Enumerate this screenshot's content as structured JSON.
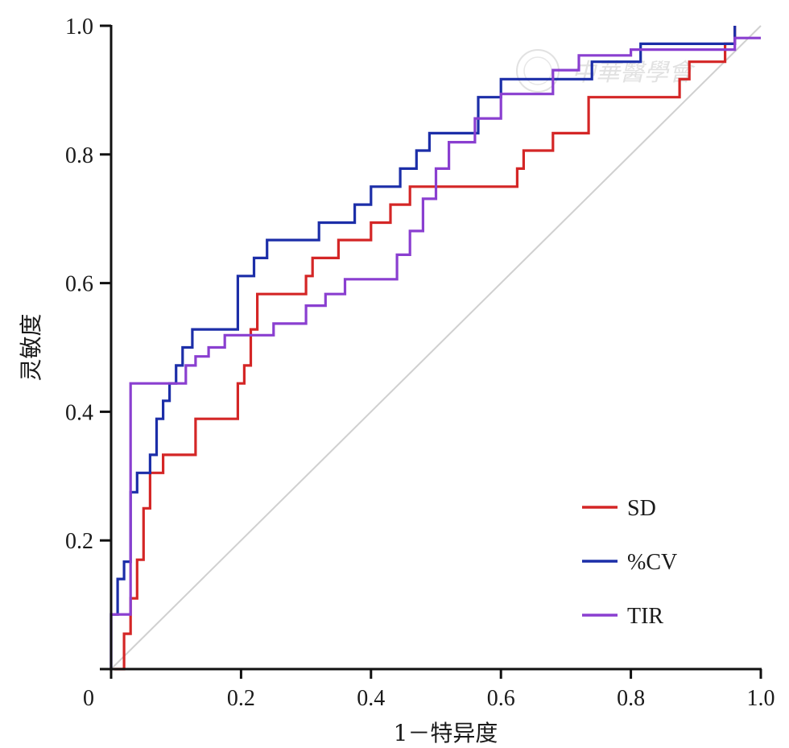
{
  "chart_data": {
    "type": "line",
    "xlabel": "1－特异度",
    "ylabel": "灵敏度",
    "xlim": [
      0,
      1
    ],
    "ylim": [
      0,
      1
    ],
    "xticks": [
      {
        "value": 0,
        "label": "0"
      },
      {
        "value": 0.2,
        "label": "0.2"
      },
      {
        "value": 0.4,
        "label": "0.4"
      },
      {
        "value": 0.6,
        "label": "0.6"
      },
      {
        "value": 0.8,
        "label": "0.8"
      },
      {
        "value": 1,
        "label": "1.0"
      }
    ],
    "yticks": [
      {
        "value": 0.2,
        "label": "0.2"
      },
      {
        "value": 0.4,
        "label": "0.4"
      },
      {
        "value": 0.6,
        "label": "0.6"
      },
      {
        "value": 0.8,
        "label": "0.8"
      },
      {
        "value": 1,
        "label": "1.0"
      }
    ],
    "grid": false,
    "legend_position": "bottom-right",
    "reference_line": {
      "x": [
        0,
        1
      ],
      "y": [
        0,
        1
      ],
      "color": "#d0d0d0"
    },
    "series": [
      {
        "name": "SD",
        "color": "#d42626",
        "points": [
          [
            0.005,
            0
          ],
          [
            0.02,
            0
          ],
          [
            0.02,
            0.055
          ],
          [
            0.03,
            0.055
          ],
          [
            0.03,
            0.11
          ],
          [
            0.04,
            0.11
          ],
          [
            0.04,
            0.17
          ],
          [
            0.05,
            0.17
          ],
          [
            0.05,
            0.25
          ],
          [
            0.06,
            0.25
          ],
          [
            0.06,
            0.305
          ],
          [
            0.08,
            0.305
          ],
          [
            0.08,
            0.333
          ],
          [
            0.13,
            0.333
          ],
          [
            0.13,
            0.389
          ],
          [
            0.195,
            0.389
          ],
          [
            0.195,
            0.444
          ],
          [
            0.205,
            0.444
          ],
          [
            0.205,
            0.472
          ],
          [
            0.215,
            0.472
          ],
          [
            0.215,
            0.528
          ],
          [
            0.225,
            0.528
          ],
          [
            0.225,
            0.583
          ],
          [
            0.3,
            0.583
          ],
          [
            0.3,
            0.611
          ],
          [
            0.31,
            0.611
          ],
          [
            0.31,
            0.639
          ],
          [
            0.35,
            0.639
          ],
          [
            0.35,
            0.667
          ],
          [
            0.4,
            0.667
          ],
          [
            0.4,
            0.694
          ],
          [
            0.43,
            0.694
          ],
          [
            0.43,
            0.722
          ],
          [
            0.46,
            0.722
          ],
          [
            0.46,
            0.75
          ],
          [
            0.625,
            0.75
          ],
          [
            0.625,
            0.778
          ],
          [
            0.635,
            0.778
          ],
          [
            0.635,
            0.806
          ],
          [
            0.68,
            0.806
          ],
          [
            0.68,
            0.833
          ],
          [
            0.735,
            0.833
          ],
          [
            0.735,
            0.889
          ],
          [
            0.875,
            0.889
          ],
          [
            0.875,
            0.917
          ],
          [
            0.89,
            0.917
          ],
          [
            0.89,
            0.944
          ],
          [
            0.945,
            0.944
          ],
          [
            0.945,
            0.972
          ],
          [
            0.96,
            0.972
          ],
          [
            0.96,
            1.0
          ]
        ]
      },
      {
        "name": "%CV",
        "color": "#1c2ea8",
        "points": [
          [
            0,
            0
          ],
          [
            0,
            0.085
          ],
          [
            0.01,
            0.085
          ],
          [
            0.01,
            0.14
          ],
          [
            0.02,
            0.14
          ],
          [
            0.02,
            0.167
          ],
          [
            0.03,
            0.167
          ],
          [
            0.03,
            0.275
          ],
          [
            0.04,
            0.275
          ],
          [
            0.04,
            0.305
          ],
          [
            0.06,
            0.305
          ],
          [
            0.06,
            0.333
          ],
          [
            0.07,
            0.333
          ],
          [
            0.07,
            0.389
          ],
          [
            0.08,
            0.389
          ],
          [
            0.08,
            0.417
          ],
          [
            0.09,
            0.417
          ],
          [
            0.09,
            0.444
          ],
          [
            0.1,
            0.444
          ],
          [
            0.1,
            0.472
          ],
          [
            0.11,
            0.472
          ],
          [
            0.11,
            0.5
          ],
          [
            0.125,
            0.5
          ],
          [
            0.125,
            0.528
          ],
          [
            0.195,
            0.528
          ],
          [
            0.195,
            0.611
          ],
          [
            0.22,
            0.611
          ],
          [
            0.22,
            0.639
          ],
          [
            0.24,
            0.639
          ],
          [
            0.24,
            0.667
          ],
          [
            0.32,
            0.667
          ],
          [
            0.32,
            0.694
          ],
          [
            0.375,
            0.694
          ],
          [
            0.375,
            0.722
          ],
          [
            0.4,
            0.722
          ],
          [
            0.4,
            0.75
          ],
          [
            0.445,
            0.75
          ],
          [
            0.445,
            0.778
          ],
          [
            0.47,
            0.778
          ],
          [
            0.47,
            0.806
          ],
          [
            0.49,
            0.806
          ],
          [
            0.49,
            0.833
          ],
          [
            0.565,
            0.833
          ],
          [
            0.565,
            0.889
          ],
          [
            0.6,
            0.889
          ],
          [
            0.6,
            0.917
          ],
          [
            0.74,
            0.917
          ],
          [
            0.74,
            0.944
          ],
          [
            0.815,
            0.944
          ],
          [
            0.815,
            0.972
          ],
          [
            0.96,
            0.972
          ],
          [
            0.96,
            1.0
          ]
        ]
      },
      {
        "name": "TIR",
        "color": "#8a3fd0",
        "points": [
          [
            0,
            0
          ],
          [
            0,
            0.085
          ],
          [
            0.03,
            0.085
          ],
          [
            0.03,
            0.444
          ],
          [
            0.115,
            0.444
          ],
          [
            0.115,
            0.472
          ],
          [
            0.13,
            0.472
          ],
          [
            0.13,
            0.486
          ],
          [
            0.15,
            0.486
          ],
          [
            0.15,
            0.5
          ],
          [
            0.175,
            0.5
          ],
          [
            0.175,
            0.519
          ],
          [
            0.25,
            0.519
          ],
          [
            0.25,
            0.537
          ],
          [
            0.3,
            0.537
          ],
          [
            0.3,
            0.565
          ],
          [
            0.33,
            0.565
          ],
          [
            0.33,
            0.583
          ],
          [
            0.36,
            0.583
          ],
          [
            0.36,
            0.606
          ],
          [
            0.44,
            0.606
          ],
          [
            0.44,
            0.644
          ],
          [
            0.46,
            0.644
          ],
          [
            0.46,
            0.681
          ],
          [
            0.48,
            0.681
          ],
          [
            0.48,
            0.731
          ],
          [
            0.5,
            0.731
          ],
          [
            0.5,
            0.778
          ],
          [
            0.52,
            0.778
          ],
          [
            0.52,
            0.819
          ],
          [
            0.56,
            0.819
          ],
          [
            0.56,
            0.856
          ],
          [
            0.6,
            0.856
          ],
          [
            0.6,
            0.894
          ],
          [
            0.68,
            0.894
          ],
          [
            0.68,
            0.931
          ],
          [
            0.72,
            0.931
          ],
          [
            0.72,
            0.954
          ],
          [
            0.8,
            0.954
          ],
          [
            0.8,
            0.963
          ],
          [
            0.96,
            0.963
          ],
          [
            0.96,
            0.981
          ],
          [
            1.0,
            0.981
          ]
        ]
      }
    ]
  },
  "watermark": {
    "text": "中華醫學會"
  }
}
